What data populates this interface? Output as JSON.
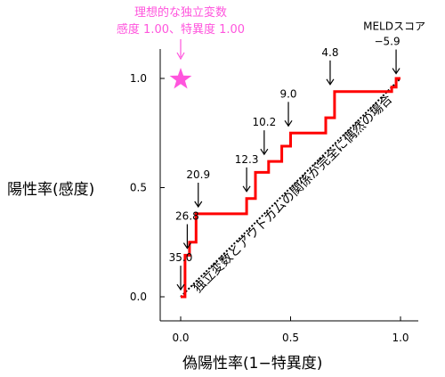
{
  "chart_data": {
    "type": "line",
    "title": "",
    "xlabel": "偽陽性率(1−特異度)",
    "ylabel": "陽性率(感度)",
    "xlim": [
      0,
      1
    ],
    "ylim": [
      0,
      1
    ],
    "x_ticks": [
      "0.0",
      "0.5",
      "1.0"
    ],
    "y_ticks": [
      "0.0",
      "0.5",
      "1.0"
    ],
    "grid": false,
    "series": [
      {
        "name": "",
        "color": "#ff0000",
        "points": [
          [
            0.0,
            0.0
          ],
          [
            0.02,
            0.0
          ],
          [
            0.02,
            0.1
          ],
          [
            0.02,
            0.19
          ],
          [
            0.04,
            0.19
          ],
          [
            0.04,
            0.25
          ],
          [
            0.07,
            0.25
          ],
          [
            0.07,
            0.38
          ],
          [
            0.3,
            0.38
          ],
          [
            0.3,
            0.45
          ],
          [
            0.34,
            0.45
          ],
          [
            0.34,
            0.57
          ],
          [
            0.4,
            0.57
          ],
          [
            0.4,
            0.62
          ],
          [
            0.46,
            0.62
          ],
          [
            0.46,
            0.69
          ],
          [
            0.5,
            0.69
          ],
          [
            0.5,
            0.75
          ],
          [
            0.66,
            0.75
          ],
          [
            0.66,
            0.82
          ],
          [
            0.7,
            0.82
          ],
          [
            0.7,
            0.94
          ],
          [
            0.96,
            0.94
          ],
          [
            0.96,
            0.96
          ],
          [
            0.98,
            0.96
          ],
          [
            0.98,
            1.0
          ],
          [
            1.0,
            1.0
          ]
        ]
      }
    ],
    "reference_line": {
      "from": [
        0,
        0
      ],
      "to": [
        1,
        1
      ],
      "label": "独立変数とアウトカムの関係が完全に偶然の場合",
      "color": "#000000"
    },
    "ideal_point": {
      "x": 0,
      "y": 1,
      "label_line1": "理想的な独立変数",
      "label_line2": "感度 1.00、特異度 1.00",
      "color": "#ff55dd"
    },
    "annotations": [
      {
        "text": "35.0",
        "x": 0.0,
        "y": 0.02
      },
      {
        "text": "26.8",
        "x": 0.03,
        "y": 0.21
      },
      {
        "text": "20.9",
        "x": 0.08,
        "y": 0.4
      },
      {
        "text": "12.3",
        "x": 0.3,
        "y": 0.47
      },
      {
        "text": "10.2",
        "x": 0.38,
        "y": 0.64
      },
      {
        "text": "9.0",
        "x": 0.49,
        "y": 0.77
      },
      {
        "text": "4.8",
        "x": 0.68,
        "y": 0.96
      },
      {
        "text": "MELDスコア",
        "text2": "−5.9",
        "x": 0.98,
        "y": 1.01
      }
    ]
  }
}
